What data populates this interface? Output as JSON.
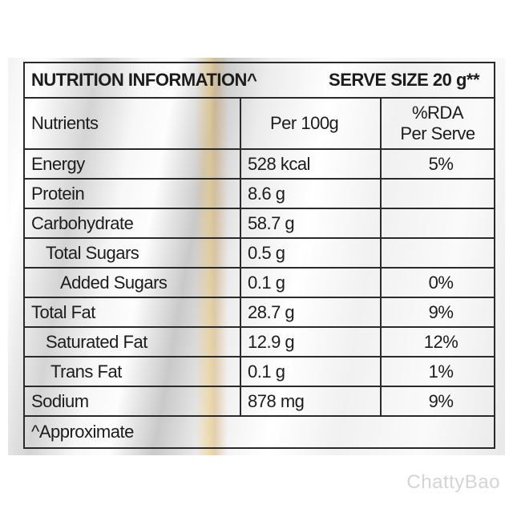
{
  "title": {
    "left": "NUTRITION INFORMATION^",
    "right": "SERVE SIZE 20 g**"
  },
  "header": {
    "nutrients": "Nutrients",
    "per100": "Per 100g",
    "rda_line1": "%RDA",
    "rda_line2": "Per Serve"
  },
  "rows": [
    {
      "name": "Energy",
      "per100": "528 kcal",
      "rda": "5%"
    },
    {
      "name": "Protein",
      "per100": "8.6 g",
      "rda": ""
    },
    {
      "name": "Carbohydrate",
      "per100": "58.7 g",
      "rda": ""
    },
    {
      "name": "Total Sugars",
      "per100": "0.5 g",
      "rda": ""
    },
    {
      "name": "Added Sugars",
      "per100": "0.1 g",
      "rda": "0%"
    },
    {
      "name": "Total Fat",
      "per100": "28.7 g",
      "rda": "9%"
    },
    {
      "name": "Saturated Fat",
      "per100": "12.9 g",
      "rda": "12%"
    },
    {
      "name": "Trans Fat",
      "per100": "0.1 g",
      "rda": "1%"
    },
    {
      "name": "Sodium",
      "per100": "878 mg",
      "rda": "9%"
    }
  ],
  "footer": "^Approximate",
  "watermark": "ChattyBao"
}
